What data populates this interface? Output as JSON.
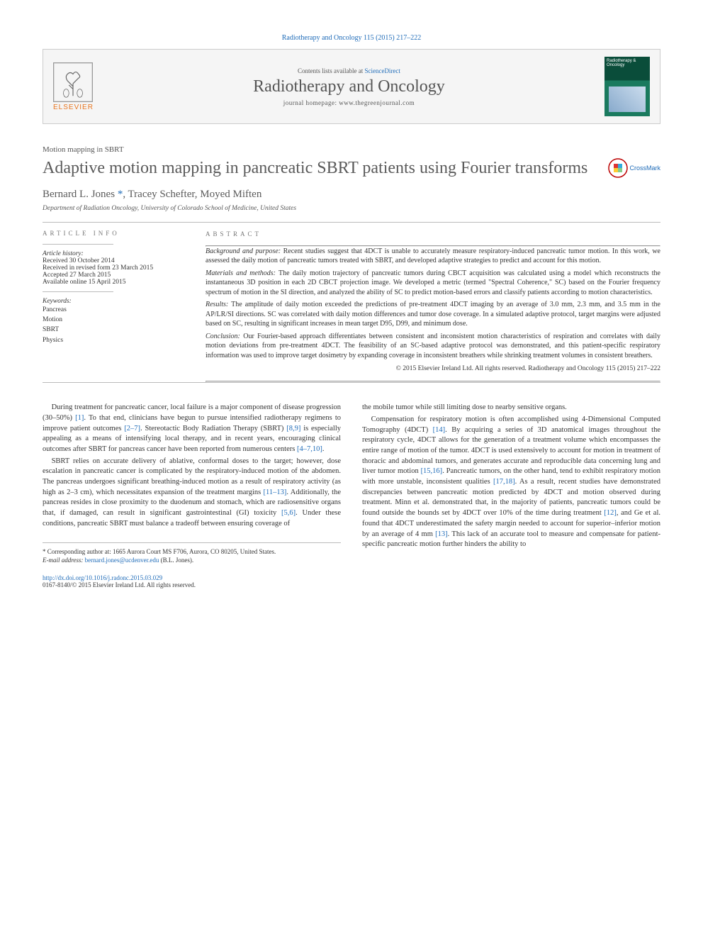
{
  "journal_ref": "Radiotherapy and Oncology 115 (2015) 217–222",
  "header": {
    "contents_prefix": "Contents lists available at ",
    "contents_link": "ScienceDirect",
    "journal_name": "Radiotherapy and Oncology",
    "homepage_prefix": "journal homepage: ",
    "homepage": "www.thegreenjournal.com",
    "elsevier_brand": "ELSEVIER",
    "cover_title": "Radiotherapy & Oncology"
  },
  "section_label": "Motion mapping in SBRT",
  "title": "Adaptive motion mapping in pancreatic SBRT patients using Fourier transforms",
  "crossmark_label": "CrossMark",
  "authors": [
    {
      "name": "Bernard L. Jones",
      "corresp": true,
      "marker": "*"
    },
    {
      "name": "Tracey Schefter",
      "corresp": false,
      "marker": ""
    },
    {
      "name": "Moyed Miften",
      "corresp": false,
      "marker": ""
    }
  ],
  "affiliation": "Department of Radiation Oncology, University of Colorado School of Medicine, United States",
  "info": {
    "heading": "ARTICLE INFO",
    "history_label": "Article history:",
    "history": [
      "Received 30 October 2014",
      "Received in revised form 23 March 2015",
      "Accepted 27 March 2015",
      "Available online 15 April 2015"
    ],
    "keywords_label": "Keywords:",
    "keywords": [
      "Pancreas",
      "Motion",
      "SBRT",
      "Physics"
    ]
  },
  "abstract": {
    "heading": "ABSTRACT",
    "paragraphs": [
      {
        "lead": "Background and purpose:",
        "text": " Recent studies suggest that 4DCT is unable to accurately measure respiratory-induced pancreatic tumor motion. In this work, we assessed the daily motion of pancreatic tumors treated with SBRT, and developed adaptive strategies to predict and account for this motion."
      },
      {
        "lead": "Materials and methods:",
        "text": " The daily motion trajectory of pancreatic tumors during CBCT acquisition was calculated using a model which reconstructs the instantaneous 3D position in each 2D CBCT projection image. We developed a metric (termed \"Spectral Coherence,\" SC) based on the Fourier frequency spectrum of motion in the SI direction, and analyzed the ability of SC to predict motion-based errors and classify patients according to motion characteristics."
      },
      {
        "lead": "Results:",
        "text": " The amplitude of daily motion exceeded the predictions of pre-treatment 4DCT imaging by an average of 3.0 mm, 2.3 mm, and 3.5 mm in the AP/LR/SI directions. SC was correlated with daily motion differences and tumor dose coverage. In a simulated adaptive protocol, target margins were adjusted based on SC, resulting in significant increases in mean target D95, D99, and minimum dose."
      },
      {
        "lead": "Conclusion:",
        "text": " Our Fourier-based approach differentiates between consistent and inconsistent motion characteristics of respiration and correlates with daily motion deviations from pre-treatment 4DCT. The feasibility of an SC-based adaptive protocol was demonstrated, and this patient-specific respiratory information was used to improve target dosimetry by expanding coverage in inconsistent breathers while shrinking treatment volumes in consistent breathers."
      }
    ],
    "copyright": "© 2015 Elsevier Ireland Ltd. All rights reserved. Radiotherapy and Oncology 115 (2015) 217–222"
  },
  "body": {
    "left": [
      {
        "text": "During treatment for pancreatic cancer, local failure is a major component of disease progression (30–50%) ",
        "ref": "[1]",
        "tail": ". To that end, clinicians have begun to pursue intensified radiotherapy regimens to improve patient outcomes ",
        "ref2": "[2–7]",
        "tail2": ". Stereotactic Body Radiation Therapy (SBRT) ",
        "ref3": "[8,9]",
        "tail3": " is especially appealing as a means of intensifying local therapy, and in recent years, encouraging clinical outcomes after SBRT for pancreas cancer have been reported from numerous centers ",
        "ref4": "[4–7,10]",
        "tail4": "."
      },
      {
        "text": "SBRT relies on accurate delivery of ablative, conformal doses to the target; however, dose escalation in pancreatic cancer is complicated by the respiratory-induced motion of the abdomen. The pancreas undergoes significant breathing-induced motion as a result of respiratory activity (as high as 2–3 cm), which necessitates expansion of the treatment margins ",
        "ref": "[11–13]",
        "tail": ". Additionally, the pancreas resides in close proximity to the duodenum and stomach, which are radiosensitive organs that, if damaged, can result in significant gastrointestinal (GI) toxicity ",
        "ref2": "[5,6]",
        "tail2": ". Under these conditions, pancreatic SBRT must balance a tradeoff between ensuring coverage of",
        "ref3": "",
        "tail3": "",
        "ref4": "",
        "tail4": ""
      }
    ],
    "right": [
      {
        "text": "the mobile tumor while still limiting dose to nearby sensitive organs.",
        "noindent": true
      },
      {
        "text": "Compensation for respiratory motion is often accomplished using 4-Dimensional Computed Tomography (4DCT) ",
        "ref": "[14]",
        "tail": ". By acquiring a series of 3D anatomical images throughout the respiratory cycle, 4DCT allows for the generation of a treatment volume which encompasses the entire range of motion of the tumor. 4DCT is used extensively to account for motion in treatment of thoracic and abdominal tumors, and generates accurate and reproducible data concerning lung and liver tumor motion ",
        "ref2": "[15,16]",
        "tail2": ". Pancreatic tumors, on the other hand, tend to exhibit respiratory motion with more unstable, inconsistent qualities ",
        "ref3": "[17,18]",
        "tail3": ". As a result, recent studies have demonstrated discrepancies between pancreatic motion predicted by 4DCT and motion observed during treatment. Minn et al. demonstrated that, in the majority of patients, pancreatic tumors could be found outside the bounds set by 4DCT over 10% of the time during treatment ",
        "ref4": "[12]",
        "tail4": ", and Ge et al. found that 4DCT underestimated the safety margin needed to account for superior–inferior motion by an average of 4 mm ",
        "ref5": "[13]",
        "tail5": ". This lack of an accurate tool to measure and compensate for patient-specific pancreatic motion further hinders the ability to"
      }
    ]
  },
  "footnotes": {
    "corresp_label": "* Corresponding author at: ",
    "corresp_text": "1665 Aurora Court MS F706, Aurora, CO 80205, United States.",
    "email_label": "E-mail address: ",
    "email_value": "bernard.jones@ucdenver.edu",
    "email_suffix": " (B.L. Jones)."
  },
  "footer": {
    "doi": "http://dx.doi.org/10.1016/j.radonc.2015.03.029",
    "issn_line": "0167-8140/© 2015 Elsevier Ireland Ltd. All rights reserved."
  },
  "colors": {
    "link": "#1e6bb8",
    "elsevier_orange": "#e87722",
    "cover_dark": "#0a4d3a"
  }
}
